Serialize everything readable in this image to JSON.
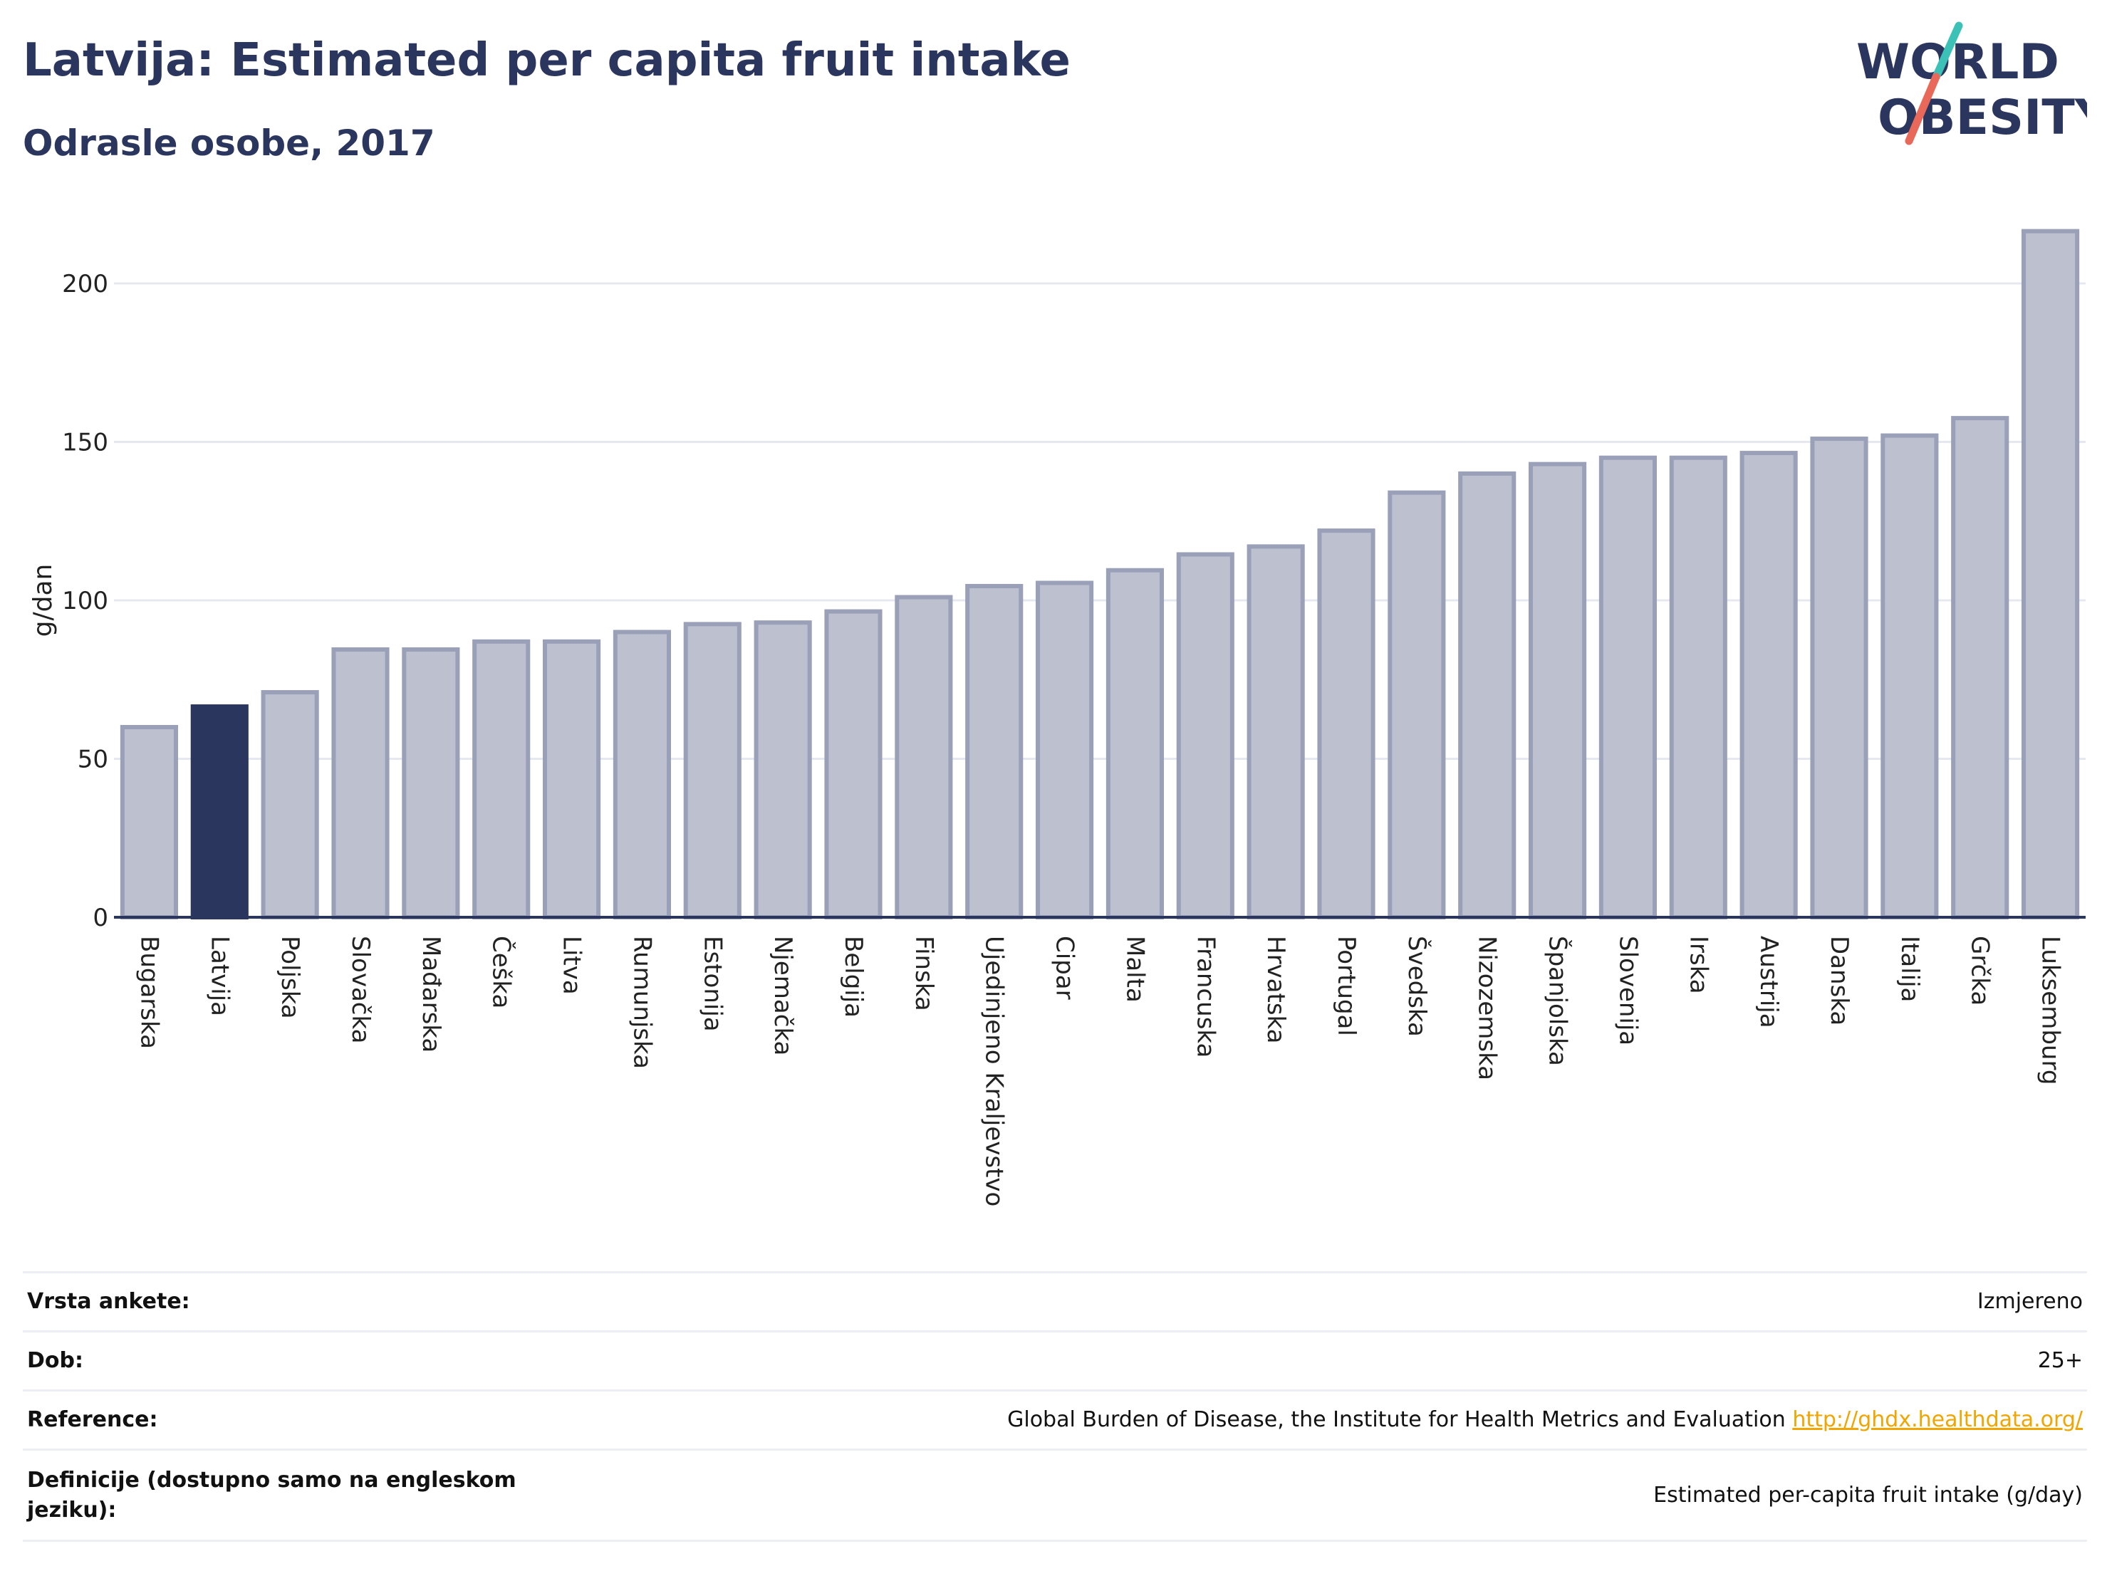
{
  "header": {
    "title": "Latvija: Estimated per capita fruit intake",
    "subtitle": "Odrasle osobe, 2017"
  },
  "logo": {
    "line1": "WORLD",
    "line2": "OBESITY",
    "colors": {
      "text": "#2b365e",
      "slash_top": "#3cc1b7",
      "slash_bottom": "#e8685a"
    }
  },
  "colors": {
    "bar": "#bcc0cf",
    "bar_border": "#9aa0b8",
    "highlight": "#2b365e",
    "grid": "#e6e8ef",
    "axis": "#2b365e"
  },
  "chart_data": {
    "type": "bar",
    "ylabel": "g/dan",
    "xlabel": "",
    "ylim": [
      0,
      225
    ],
    "yticks": [
      0,
      50,
      100,
      150,
      200
    ],
    "grid": true,
    "highlight": "Latvija",
    "categories": [
      "Bugarska",
      "Latvija",
      "Poljska",
      "Slovačka",
      "Mađarska",
      "Češka",
      "Litva",
      "Rumunjska",
      "Estonija",
      "Njemačka",
      "Belgija",
      "Finska",
      "Ujedinjeno Kraljevstvo",
      "Cipar",
      "Malta",
      "Francuska",
      "Hrvatska",
      "Portugal",
      "Švedska",
      "Nizozemska",
      "Španjolska",
      "Slovenija",
      "Irska",
      "Austrija",
      "Danska",
      "Italija",
      "Grčka",
      "Luksemburg"
    ],
    "values": [
      60,
      66.5,
      71,
      84.5,
      84.5,
      87,
      87,
      90,
      92.5,
      93,
      96.5,
      101,
      104.5,
      105.5,
      109.5,
      114.5,
      117,
      122,
      134,
      140,
      143,
      145,
      145,
      146.5,
      151,
      152,
      157.5,
      216.5
    ]
  },
  "info": {
    "rows": [
      {
        "label": "Vrsta ankete:",
        "value": "Izmjereno"
      },
      {
        "label": "Dob:",
        "value": "25+"
      },
      {
        "label": "Reference:",
        "value": "Global Burden of Disease, the Institute for Health Metrics and Evaluation",
        "link": "http://ghdx.healthdata.org/"
      },
      {
        "label": "Definicije (dostupno samo na engleskom jeziku):",
        "value": "Estimated per-capita fruit intake (g/day)"
      }
    ]
  }
}
